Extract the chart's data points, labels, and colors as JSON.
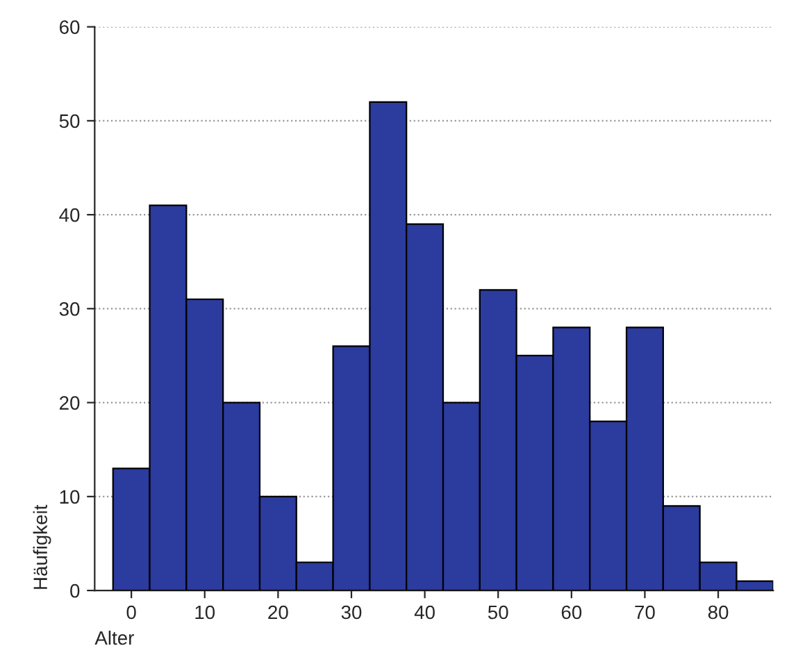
{
  "chart_data": {
    "type": "histogram",
    "xlabel": "Alter",
    "ylabel": "Häufigkeit",
    "bins": [
      -2.5,
      2.5,
      7.5,
      12.5,
      17.5,
      22.5,
      27.5,
      32.5,
      37.5,
      42.5,
      47.5,
      52.5,
      57.5,
      62.5,
      67.5,
      72.5,
      77.5,
      82.5,
      87.5
    ],
    "values": [
      13,
      41,
      31,
      20,
      10,
      3,
      26,
      52,
      39,
      20,
      32,
      25,
      28,
      18,
      28,
      9,
      3,
      1
    ],
    "color": "#2b3b9e",
    "xlim": [
      -5,
      87.5
    ],
    "ylim": [
      0,
      60
    ],
    "xticks": [
      0,
      10,
      20,
      30,
      40,
      50,
      60,
      70,
      80
    ],
    "yticks": [
      0,
      10,
      20,
      30,
      40,
      50,
      60
    ],
    "grid": "y"
  }
}
